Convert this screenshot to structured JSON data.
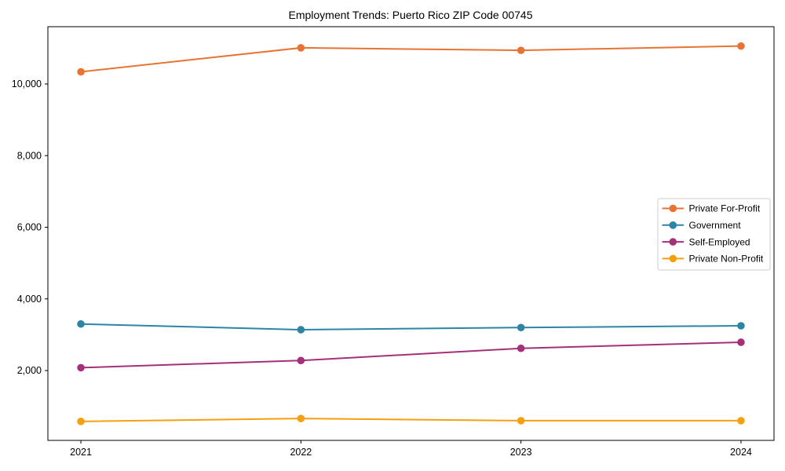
{
  "window": {
    "background_color": "#ffffff"
  },
  "chart_data": {
    "type": "line",
    "title": "Employment Trends: Puerto Rico ZIP Code 00745",
    "xlabel": "",
    "ylabel": "",
    "x": [
      2021,
      2022,
      2023,
      2024
    ],
    "xtick_labels": [
      "2021",
      "2022",
      "2023",
      "2024"
    ],
    "ytick_values": [
      2000,
      4000,
      6000,
      8000,
      10000
    ],
    "ytick_labels": [
      "2,000",
      "4,000",
      "6,000",
      "8,000",
      "10,000"
    ],
    "xlim": [
      2020.85,
      2024.15
    ],
    "ylim": [
      50,
      11600
    ],
    "grid": false,
    "legend_position": "center-right",
    "marker": "circle",
    "series": [
      {
        "name": "Private For-Profit",
        "color": "#e87332",
        "values": [
          10340,
          11010,
          10940,
          11060
        ]
      },
      {
        "name": "Government",
        "color": "#2c85a5",
        "values": [
          3300,
          3140,
          3200,
          3250
        ]
      },
      {
        "name": "Self-Employed",
        "color": "#a53079",
        "values": [
          2080,
          2280,
          2620,
          2790
        ]
      },
      {
        "name": "Private Non-Profit",
        "color": "#f5a00f",
        "values": [
          580,
          660,
          600,
          600
        ]
      }
    ],
    "axis_color": "#000000",
    "legend_border_color": "#cccccc",
    "legend_background_color": "#ffffff"
  }
}
